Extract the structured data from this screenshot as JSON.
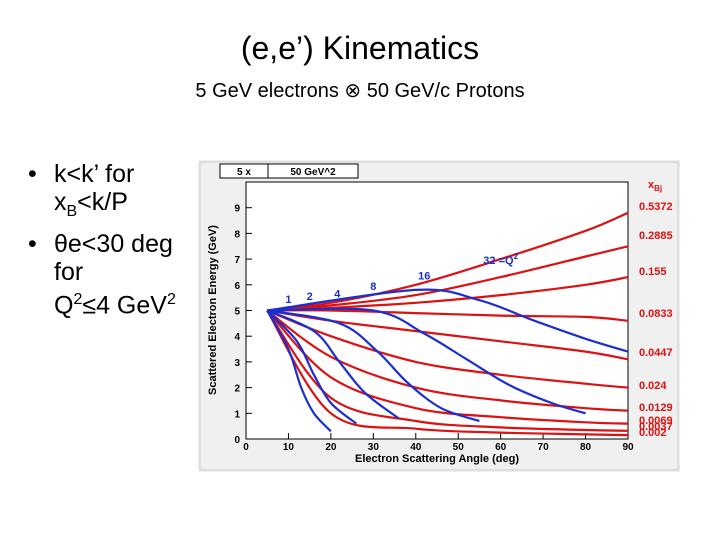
{
  "slide": {
    "title": "(e,e’) Kinematics",
    "subtitle": "5 GeV electrons ⊗ 50 GeV/c Protons",
    "bullets": [
      {
        "bullet": "•",
        "line1": "k<k’ for",
        "line2_main": "x",
        "line2_sub": "B",
        "line2_rest": "<k/P"
      },
      {
        "bullet": "•",
        "line1_sym": "θ",
        "line1": "e<30 deg",
        "line2": "for",
        "line3_main": "Q",
        "line3_sup": "2",
        "line3_rest": "≤4 GeV",
        "line3_sup2": "2"
      }
    ]
  },
  "chart_data": {
    "type": "line",
    "header": {
      "left": "5 x",
      "right": "50 GeV^2"
    },
    "xlabel": "Electron Scattering Angle (deg)",
    "ylabel": "Scattered Electron Energy (GeV)",
    "xlim": [
      0,
      90
    ],
    "ylim": [
      0,
      10
    ],
    "xticks": [
      0,
      10,
      20,
      30,
      40,
      50,
      60,
      70,
      80,
      90
    ],
    "yticks": [
      0,
      1,
      2,
      3,
      4,
      5,
      6,
      7,
      8,
      9
    ],
    "legend_title": "x",
    "legend_title_sub": "Bj",
    "colors": {
      "x_lines": "#dd1111",
      "q2_lines": "#1a2fd0",
      "frame": "#000000",
      "panel": "#ffffff",
      "bg": "#f0f0f0"
    },
    "x_series": [
      {
        "name": "0.5372",
        "points": [
          [
            5,
            5.0
          ],
          [
            20,
            5.3
          ],
          [
            40,
            6.0
          ],
          [
            60,
            7.0
          ],
          [
            80,
            8.1
          ],
          [
            90,
            8.8
          ]
        ]
      },
      {
        "name": "0.2885",
        "points": [
          [
            5,
            5.0
          ],
          [
            20,
            5.2
          ],
          [
            40,
            5.6
          ],
          [
            60,
            6.3
          ],
          [
            80,
            7.1
          ],
          [
            90,
            7.5
          ]
        ]
      },
      {
        "name": "0.155",
        "points": [
          [
            5,
            5.0
          ],
          [
            20,
            5.1
          ],
          [
            40,
            5.3
          ],
          [
            60,
            5.6
          ],
          [
            80,
            6.0
          ],
          [
            90,
            6.3
          ]
        ]
      },
      {
        "name": "0.0833",
        "points": [
          [
            5,
            5.0
          ],
          [
            20,
            5.0
          ],
          [
            40,
            4.9
          ],
          [
            60,
            4.8
          ],
          [
            80,
            4.75
          ],
          [
            90,
            4.6
          ]
        ]
      },
      {
        "name": "0.0447",
        "points": [
          [
            5,
            5.0
          ],
          [
            20,
            4.6
          ],
          [
            40,
            4.2
          ],
          [
            60,
            3.8
          ],
          [
            80,
            3.4
          ],
          [
            90,
            3.1
          ]
        ]
      },
      {
        "name": "0.024",
        "points": [
          [
            5,
            5.0
          ],
          [
            20,
            4.0
          ],
          [
            40,
            3.0
          ],
          [
            60,
            2.5
          ],
          [
            80,
            2.15
          ],
          [
            90,
            2.0
          ]
        ]
      },
      {
        "name": "0.0129",
        "points": [
          [
            5,
            5.0
          ],
          [
            20,
            3.2
          ],
          [
            40,
            2.0
          ],
          [
            60,
            1.5
          ],
          [
            80,
            1.2
          ],
          [
            90,
            1.1
          ]
        ]
      },
      {
        "name": "0.0069",
        "points": [
          [
            5,
            5.0
          ],
          [
            20,
            2.4
          ],
          [
            40,
            1.2
          ],
          [
            60,
            0.85
          ],
          [
            80,
            0.65
          ],
          [
            90,
            0.6
          ]
        ]
      },
      {
        "name": "0.0037",
        "points": [
          [
            5,
            5.0
          ],
          [
            20,
            1.6
          ],
          [
            40,
            0.7
          ],
          [
            60,
            0.45
          ],
          [
            80,
            0.35
          ],
          [
            90,
            0.32
          ]
        ]
      },
      {
        "name": "0.002",
        "points": [
          [
            5,
            5.0
          ],
          [
            20,
            1.0
          ],
          [
            40,
            0.4
          ],
          [
            60,
            0.25
          ],
          [
            80,
            0.18
          ],
          [
            90,
            0.15
          ]
        ]
      }
    ],
    "q2_series": [
      {
        "name": "1",
        "points": [
          [
            5,
            5.0
          ],
          [
            10,
            3.5
          ],
          [
            13,
            2.0
          ],
          [
            16,
            1.0
          ],
          [
            20,
            0.3
          ]
        ]
      },
      {
        "name": "2",
        "points": [
          [
            5,
            5.0
          ],
          [
            12,
            3.8
          ],
          [
            16,
            2.5
          ],
          [
            20,
            1.4
          ],
          [
            26,
            0.6
          ]
        ]
      },
      {
        "name": "4",
        "points": [
          [
            5,
            5.0
          ],
          [
            16,
            4.2
          ],
          [
            22,
            3.0
          ],
          [
            28,
            1.8
          ],
          [
            36,
            0.8
          ]
        ]
      },
      {
        "name": "8",
        "points": [
          [
            5,
            5.0
          ],
          [
            22,
            4.5
          ],
          [
            31,
            3.4
          ],
          [
            38,
            2.2
          ],
          [
            46,
            1.2
          ],
          [
            55,
            0.7
          ]
        ]
      },
      {
        "name": "16",
        "points": [
          [
            5,
            5.0
          ],
          [
            30,
            5.0
          ],
          [
            42,
            4.1
          ],
          [
            52,
            3.1
          ],
          [
            62,
            2.1
          ],
          [
            72,
            1.4
          ],
          [
            80,
            1.0
          ]
        ]
      },
      {
        "name": "32",
        "points": [
          [
            5,
            5.0
          ],
          [
            40,
            5.8
          ],
          [
            55,
            5.4
          ],
          [
            68,
            4.6
          ],
          [
            80,
            3.9
          ],
          [
            90,
            3.4
          ]
        ]
      }
    ],
    "q2_labels": [
      {
        "text": "1",
        "x": 10,
        "y": 5.3
      },
      {
        "text": "2",
        "x": 15,
        "y": 5.4
      },
      {
        "text": "4",
        "x": 21.5,
        "y": 5.5
      },
      {
        "text": "8",
        "x": 30,
        "y": 5.8
      },
      {
        "text": "16",
        "x": 42,
        "y": 6.2
      },
      {
        "text": "32 =Q",
        "sup": "2",
        "x": 60,
        "y": 6.8
      }
    ]
  }
}
